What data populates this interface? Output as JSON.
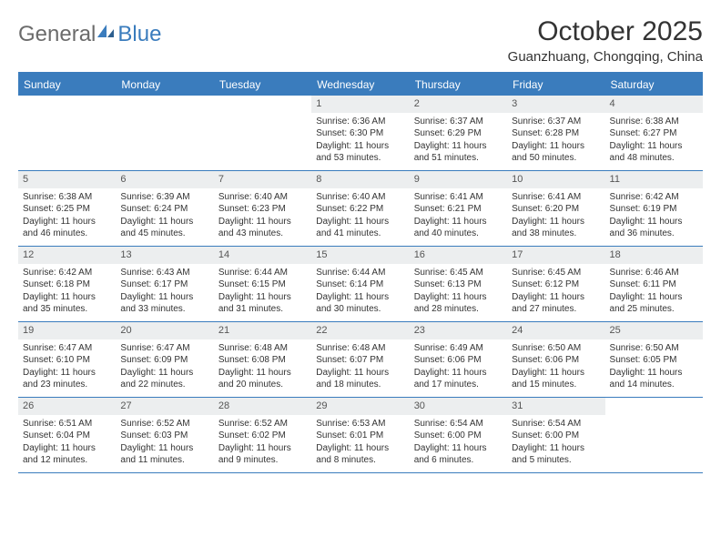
{
  "logo": {
    "general": "General",
    "blue": "Blue"
  },
  "title": "October 2025",
  "subtitle": "Guanzhuang, Chongqing, China",
  "colors": {
    "accent": "#3a7cbd",
    "header_bg": "#3a7cbd",
    "daynum_bg": "#eceeef",
    "text": "#333333",
    "logo_grey": "#6b6b6b"
  },
  "day_names": [
    "Sunday",
    "Monday",
    "Tuesday",
    "Wednesday",
    "Thursday",
    "Friday",
    "Saturday"
  ],
  "weeks": [
    [
      {
        "num": "",
        "lines": []
      },
      {
        "num": "",
        "lines": []
      },
      {
        "num": "",
        "lines": []
      },
      {
        "num": "1",
        "lines": [
          "Sunrise: 6:36 AM",
          "Sunset: 6:30 PM",
          "Daylight: 11 hours and 53 minutes."
        ]
      },
      {
        "num": "2",
        "lines": [
          "Sunrise: 6:37 AM",
          "Sunset: 6:29 PM",
          "Daylight: 11 hours and 51 minutes."
        ]
      },
      {
        "num": "3",
        "lines": [
          "Sunrise: 6:37 AM",
          "Sunset: 6:28 PM",
          "Daylight: 11 hours and 50 minutes."
        ]
      },
      {
        "num": "4",
        "lines": [
          "Sunrise: 6:38 AM",
          "Sunset: 6:27 PM",
          "Daylight: 11 hours and 48 minutes."
        ]
      }
    ],
    [
      {
        "num": "5",
        "lines": [
          "Sunrise: 6:38 AM",
          "Sunset: 6:25 PM",
          "Daylight: 11 hours and 46 minutes."
        ]
      },
      {
        "num": "6",
        "lines": [
          "Sunrise: 6:39 AM",
          "Sunset: 6:24 PM",
          "Daylight: 11 hours and 45 minutes."
        ]
      },
      {
        "num": "7",
        "lines": [
          "Sunrise: 6:40 AM",
          "Sunset: 6:23 PM",
          "Daylight: 11 hours and 43 minutes."
        ]
      },
      {
        "num": "8",
        "lines": [
          "Sunrise: 6:40 AM",
          "Sunset: 6:22 PM",
          "Daylight: 11 hours and 41 minutes."
        ]
      },
      {
        "num": "9",
        "lines": [
          "Sunrise: 6:41 AM",
          "Sunset: 6:21 PM",
          "Daylight: 11 hours and 40 minutes."
        ]
      },
      {
        "num": "10",
        "lines": [
          "Sunrise: 6:41 AM",
          "Sunset: 6:20 PM",
          "Daylight: 11 hours and 38 minutes."
        ]
      },
      {
        "num": "11",
        "lines": [
          "Sunrise: 6:42 AM",
          "Sunset: 6:19 PM",
          "Daylight: 11 hours and 36 minutes."
        ]
      }
    ],
    [
      {
        "num": "12",
        "lines": [
          "Sunrise: 6:42 AM",
          "Sunset: 6:18 PM",
          "Daylight: 11 hours and 35 minutes."
        ]
      },
      {
        "num": "13",
        "lines": [
          "Sunrise: 6:43 AM",
          "Sunset: 6:17 PM",
          "Daylight: 11 hours and 33 minutes."
        ]
      },
      {
        "num": "14",
        "lines": [
          "Sunrise: 6:44 AM",
          "Sunset: 6:15 PM",
          "Daylight: 11 hours and 31 minutes."
        ]
      },
      {
        "num": "15",
        "lines": [
          "Sunrise: 6:44 AM",
          "Sunset: 6:14 PM",
          "Daylight: 11 hours and 30 minutes."
        ]
      },
      {
        "num": "16",
        "lines": [
          "Sunrise: 6:45 AM",
          "Sunset: 6:13 PM",
          "Daylight: 11 hours and 28 minutes."
        ]
      },
      {
        "num": "17",
        "lines": [
          "Sunrise: 6:45 AM",
          "Sunset: 6:12 PM",
          "Daylight: 11 hours and 27 minutes."
        ]
      },
      {
        "num": "18",
        "lines": [
          "Sunrise: 6:46 AM",
          "Sunset: 6:11 PM",
          "Daylight: 11 hours and 25 minutes."
        ]
      }
    ],
    [
      {
        "num": "19",
        "lines": [
          "Sunrise: 6:47 AM",
          "Sunset: 6:10 PM",
          "Daylight: 11 hours and 23 minutes."
        ]
      },
      {
        "num": "20",
        "lines": [
          "Sunrise: 6:47 AM",
          "Sunset: 6:09 PM",
          "Daylight: 11 hours and 22 minutes."
        ]
      },
      {
        "num": "21",
        "lines": [
          "Sunrise: 6:48 AM",
          "Sunset: 6:08 PM",
          "Daylight: 11 hours and 20 minutes."
        ]
      },
      {
        "num": "22",
        "lines": [
          "Sunrise: 6:48 AM",
          "Sunset: 6:07 PM",
          "Daylight: 11 hours and 18 minutes."
        ]
      },
      {
        "num": "23",
        "lines": [
          "Sunrise: 6:49 AM",
          "Sunset: 6:06 PM",
          "Daylight: 11 hours and 17 minutes."
        ]
      },
      {
        "num": "24",
        "lines": [
          "Sunrise: 6:50 AM",
          "Sunset: 6:06 PM",
          "Daylight: 11 hours and 15 minutes."
        ]
      },
      {
        "num": "25",
        "lines": [
          "Sunrise: 6:50 AM",
          "Sunset: 6:05 PM",
          "Daylight: 11 hours and 14 minutes."
        ]
      }
    ],
    [
      {
        "num": "26",
        "lines": [
          "Sunrise: 6:51 AM",
          "Sunset: 6:04 PM",
          "Daylight: 11 hours and 12 minutes."
        ]
      },
      {
        "num": "27",
        "lines": [
          "Sunrise: 6:52 AM",
          "Sunset: 6:03 PM",
          "Daylight: 11 hours and 11 minutes."
        ]
      },
      {
        "num": "28",
        "lines": [
          "Sunrise: 6:52 AM",
          "Sunset: 6:02 PM",
          "Daylight: 11 hours and 9 minutes."
        ]
      },
      {
        "num": "29",
        "lines": [
          "Sunrise: 6:53 AM",
          "Sunset: 6:01 PM",
          "Daylight: 11 hours and 8 minutes."
        ]
      },
      {
        "num": "30",
        "lines": [
          "Sunrise: 6:54 AM",
          "Sunset: 6:00 PM",
          "Daylight: 11 hours and 6 minutes."
        ]
      },
      {
        "num": "31",
        "lines": [
          "Sunrise: 6:54 AM",
          "Sunset: 6:00 PM",
          "Daylight: 11 hours and 5 minutes."
        ]
      },
      {
        "num": "",
        "lines": []
      }
    ]
  ]
}
